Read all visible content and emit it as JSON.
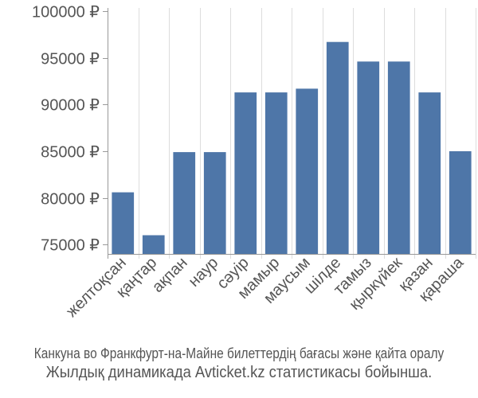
{
  "chart_data": {
    "type": "bar",
    "categories": [
      "желтоқсан",
      "қаңтар",
      "ақпан",
      "наур",
      "сәуір",
      "мамыр",
      "маусым",
      "шілде",
      "тамыз",
      "қыркүйек",
      "қазан",
      "қараша"
    ],
    "values": [
      80600,
      76000,
      84900,
      84900,
      91300,
      91300,
      91700,
      96700,
      94600,
      94600,
      91300,
      85000
    ],
    "yticks": [
      "75000 ₽",
      "80000 ₽",
      "85000 ₽",
      "90000 ₽",
      "95000 ₽",
      "100000 ₽"
    ],
    "ytick_values": [
      75000,
      80000,
      85000,
      90000,
      95000,
      100000
    ],
    "ylim": [
      74000,
      100000
    ],
    "grid": "vertical",
    "bar_color": "#4e76a8",
    "grid_color": "#dddddd",
    "axis_color": "#999999",
    "title": "",
    "xlabel": "",
    "ylabel": ""
  },
  "caption": {
    "line1": "Канкуна во Франкфурт-на-Майне билеттердің бағасы және қайта оралу",
    "line2": "Жылдық динамикада Avticket.kz статистикасы бойынша."
  }
}
